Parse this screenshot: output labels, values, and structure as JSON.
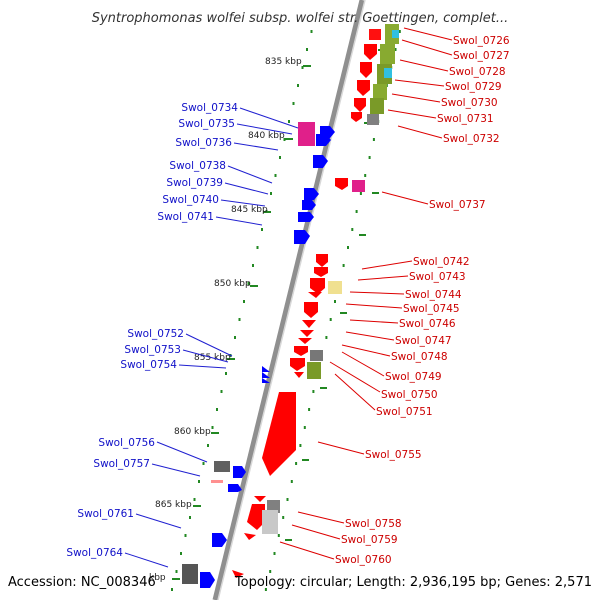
{
  "title": "Syntrophomonas wolfei subsp. wolfei str. Goettingen, complet...",
  "accession": "Accession: NC_008346",
  "topology": "Topology: circular; Length: 2,936,195 bp; Genes: 2,571",
  "colors": {
    "plus_strand": "#ff0000",
    "minus_strand": "#0000ff",
    "backbone": "#909090",
    "tick": "#228822",
    "label_left": "#1010c8",
    "label_right": "#cc0000"
  },
  "scale": {
    "unit": "kbp",
    "major_ticks": [
      {
        "label": "835 kbp",
        "kbp": 835
      },
      {
        "label": "840 kbp",
        "kbp": 840
      },
      {
        "label": "845 kbp",
        "kbp": 845
      },
      {
        "label": "850 kbp",
        "kbp": 850
      },
      {
        "label": "855 kbp",
        "kbp": 855
      },
      {
        "label": "860 kbp",
        "kbp": 860
      },
      {
        "label": "865 kbp",
        "kbp": 865
      },
      {
        "label": "kbp",
        "kbp": 870
      }
    ]
  },
  "left_genes": [
    "Swol_0734",
    "Swol_0735",
    "Swol_0736",
    "Swol_0738",
    "Swol_0739",
    "Swol_0740",
    "Swol_0741",
    "Swol_0752",
    "Swol_0753",
    "Swol_0754",
    "Swol_0756",
    "Swol_0757",
    "Swol_0761",
    "Swol_0764"
  ],
  "right_genes": [
    "Swol_0726",
    "Swol_0727",
    "Swol_0728",
    "Swol_0729",
    "Swol_0730",
    "Swol_0731",
    "Swol_0732",
    "Swol_0737",
    "Swol_0742",
    "Swol_0743",
    "Swol_0744",
    "Swol_0745",
    "Swol_0746",
    "Swol_0747",
    "Swol_0748",
    "Swol_0749",
    "Swol_0750",
    "Swol_0751",
    "Swol_0755",
    "Swol_0758",
    "Swol_0759",
    "Swol_0760"
  ]
}
